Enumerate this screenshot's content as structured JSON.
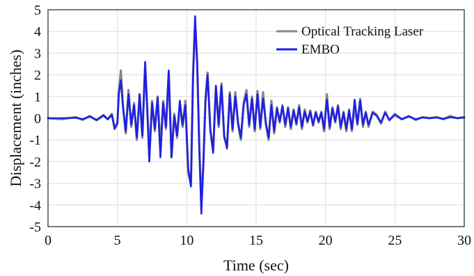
{
  "chart_data": {
    "type": "line",
    "title": "",
    "xlabel": "Time (sec)",
    "ylabel": "Displacement (inches)",
    "xlim": [
      0,
      30
    ],
    "ylim": [
      -5,
      5
    ],
    "xticks": [
      0,
      5,
      10,
      15,
      20,
      25,
      30
    ],
    "yticks": [
      -5,
      -4,
      -3,
      -2,
      -1,
      0,
      1,
      2,
      3,
      4,
      5
    ],
    "grid": true,
    "legend_position": "top-right",
    "series": [
      {
        "name": "Optical Tracking Laser",
        "color": "#888888",
        "x": [
          0,
          1,
          2,
          2.5,
          3,
          3.5,
          4,
          4.3,
          4.6,
          4.8,
          5,
          5.1,
          5.25,
          5.4,
          5.6,
          5.8,
          6,
          6.2,
          6.4,
          6.6,
          6.8,
          7,
          7.15,
          7.3,
          7.5,
          7.7,
          7.9,
          8.1,
          8.3,
          8.5,
          8.7,
          8.9,
          9.1,
          9.3,
          9.5,
          9.7,
          9.9,
          10.1,
          10.3,
          10.45,
          10.6,
          10.75,
          10.9,
          11.05,
          11.2,
          11.35,
          11.5,
          11.7,
          11.9,
          12.1,
          12.3,
          12.5,
          12.7,
          12.9,
          13.1,
          13.3,
          13.5,
          13.7,
          13.9,
          14.1,
          14.3,
          14.5,
          14.7,
          14.9,
          15.1,
          15.3,
          15.5,
          15.7,
          15.9,
          16.1,
          16.3,
          16.5,
          16.7,
          16.9,
          17.1,
          17.3,
          17.5,
          17.7,
          17.9,
          18.1,
          18.3,
          18.5,
          18.7,
          18.9,
          19.1,
          19.3,
          19.5,
          19.7,
          19.9,
          20.1,
          20.3,
          20.5,
          20.7,
          20.9,
          21.1,
          21.3,
          21.5,
          21.7,
          21.9,
          22.1,
          22.3,
          22.5,
          22.7,
          22.9,
          23.1,
          23.4,
          23.7,
          24,
          24.3,
          24.6,
          25,
          25.5,
          26,
          26.5,
          27,
          27.5,
          28,
          28.5,
          29,
          29.5,
          30
        ],
        "y": [
          0,
          -0.05,
          0.05,
          -0.08,
          0.1,
          -0.1,
          0.15,
          -0.05,
          0.2,
          -0.45,
          -0.2,
          1.2,
          2.2,
          0.6,
          -0.7,
          1.3,
          -0.4,
          0.7,
          -1,
          1.1,
          -0.9,
          2.4,
          0.5,
          -1.7,
          0.8,
          -0.6,
          1,
          -1.4,
          0.8,
          -0.5,
          2.1,
          -1.8,
          0.2,
          -0.9,
          0.6,
          -0.4,
          0.8,
          -2.5,
          -3.05,
          2,
          4.4,
          2.5,
          -1.3,
          -4,
          -2,
          0.9,
          2.1,
          -0.6,
          -1.5,
          1.4,
          -0.4,
          1.6,
          -0.9,
          -1.3,
          1.2,
          -0.6,
          1.2,
          -0.3,
          -1,
          0.7,
          1.3,
          -0.4,
          1,
          -0.6,
          1.25,
          -0.5,
          1.2,
          -0.3,
          -1,
          0.8,
          -0.7,
          0.5,
          -0.2,
          0.6,
          -0.4,
          0.5,
          -0.5,
          0.4,
          -0.3,
          0.6,
          -0.5,
          0.4,
          -0.2,
          0.35,
          -0.35,
          0.3,
          -0.2,
          0.3,
          -0.6,
          1.1,
          -0.5,
          0.5,
          -0.2,
          0.6,
          -0.5,
          0.3,
          -0.6,
          0.4,
          -0.6,
          0.55,
          -0.3,
          0.9,
          -0.4,
          0.3,
          -0.4,
          0.3,
          0.15,
          -0.25,
          0.3,
          -0.1,
          0.2,
          -0.05,
          0.1,
          -0.08,
          0.05,
          0,
          0.05,
          -0.05,
          0.1,
          0,
          0.05
        ]
      },
      {
        "name": "EMBO",
        "color": "#1f1fe6",
        "x": [
          0,
          1,
          2,
          2.5,
          3,
          3.5,
          4,
          4.3,
          4.6,
          4.8,
          5,
          5.1,
          5.25,
          5.4,
          5.6,
          5.8,
          6,
          6.2,
          6.4,
          6.6,
          6.8,
          7,
          7.15,
          7.3,
          7.5,
          7.7,
          7.9,
          8.1,
          8.3,
          8.5,
          8.7,
          8.9,
          9.1,
          9.3,
          9.5,
          9.7,
          9.9,
          10.1,
          10.3,
          10.45,
          10.6,
          10.75,
          10.9,
          11.05,
          11.2,
          11.35,
          11.5,
          11.7,
          11.9,
          12.1,
          12.3,
          12.5,
          12.7,
          12.9,
          13.1,
          13.3,
          13.5,
          13.7,
          13.9,
          14.1,
          14.3,
          14.5,
          14.7,
          14.9,
          15.1,
          15.3,
          15.5,
          15.7,
          15.9,
          16.1,
          16.3,
          16.5,
          16.7,
          16.9,
          17.1,
          17.3,
          17.5,
          17.7,
          17.9,
          18.1,
          18.3,
          18.5,
          18.7,
          18.9,
          19.1,
          19.3,
          19.5,
          19.7,
          19.9,
          20.1,
          20.3,
          20.5,
          20.7,
          20.9,
          21.1,
          21.3,
          21.5,
          21.7,
          21.9,
          22.1,
          22.3,
          22.5,
          22.7,
          22.9,
          23.1,
          23.4,
          23.7,
          24,
          24.3,
          24.6,
          25,
          25.5,
          26,
          26.5,
          27,
          27.5,
          28,
          28.5,
          29,
          29.5,
          30
        ],
        "y": [
          0,
          0,
          0.02,
          -0.05,
          0.08,
          -0.08,
          0.12,
          -0.05,
          0.15,
          -0.5,
          -0.25,
          1.1,
          1.75,
          0.5,
          -0.6,
          1.1,
          -0.3,
          0.6,
          -0.9,
          1.1,
          -0.8,
          2.6,
          0.4,
          -2,
          0.7,
          -0.5,
          0.95,
          -1.8,
          0.7,
          -0.4,
          2.2,
          -1.8,
          0.1,
          -0.8,
          0.8,
          -0.3,
          0.6,
          -2.3,
          -3.15,
          1.8,
          4.7,
          2.6,
          -1.2,
          -4.4,
          -2.1,
          0.8,
          2,
          -0.5,
          -1.6,
          1.5,
          -0.3,
          1.5,
          -0.8,
          -1.4,
          1.1,
          -0.5,
          1,
          -0.2,
          -0.9,
          0.6,
          1.1,
          -0.3,
          0.9,
          -0.5,
          1.1,
          -0.4,
          0.9,
          -0.2,
          -0.9,
          0.6,
          -0.6,
          0.45,
          -0.15,
          0.55,
          -0.3,
          0.45,
          -0.4,
          0.35,
          -0.25,
          0.5,
          -0.4,
          0.3,
          -0.15,
          0.3,
          -0.3,
          0.25,
          -0.15,
          0.25,
          -0.5,
          0.85,
          -0.4,
          0.45,
          -0.15,
          0.55,
          -0.4,
          0.25,
          -0.5,
          0.35,
          -0.5,
          0.85,
          -0.25,
          0.8,
          -0.3,
          0.25,
          -0.3,
          0.25,
          0.1,
          -0.2,
          0.25,
          -0.08,
          0.15,
          -0.05,
          0.08,
          -0.05,
          0.03,
          0,
          0.03,
          -0.03,
          0.05,
          0,
          0.03
        ]
      }
    ]
  }
}
